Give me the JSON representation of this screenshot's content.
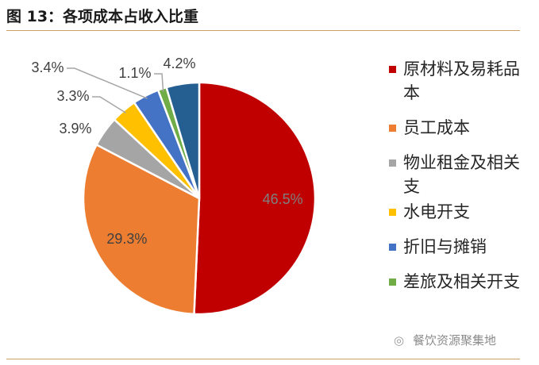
{
  "title": "图 13：各项成本占收入比重",
  "watermark": "餐饮资源聚集地",
  "chart_data": {
    "type": "pie",
    "title": "图 13：各项成本占收入比重",
    "slices": [
      {
        "name": "原材料及易耗品本",
        "value": 46.5,
        "label": "46.5%",
        "color": "#c00000"
      },
      {
        "name": "员工成本",
        "value": 29.3,
        "label": "29.3%",
        "color": "#ed7d31"
      },
      {
        "name": "物业租金及相关支",
        "value": 3.9,
        "label": "3.9%",
        "color": "#a5a5a5"
      },
      {
        "name": "水电开支",
        "value": 3.3,
        "label": "3.3%",
        "color": "#ffc000"
      },
      {
        "name": "折旧与摊销",
        "value": 3.4,
        "label": "3.4%",
        "color": "#4472c4"
      },
      {
        "name": "差旅及相关开支",
        "value": 1.1,
        "label": "1.1%",
        "color": "#70ad47"
      },
      {
        "name": "",
        "value": 4.2,
        "label": "4.2%",
        "color": "#255e91"
      }
    ],
    "legend": {
      "placement": "right",
      "items": [
        {
          "lines": [
            "原材料及易耗品",
            "本"
          ],
          "color": "#c00000"
        },
        {
          "lines": [
            "员工成本"
          ],
          "color": "#ed7d31"
        },
        {
          "lines": [
            "物业租金及相关",
            "支"
          ],
          "color": "#a5a5a5"
        },
        {
          "lines": [
            "水电开支"
          ],
          "color": "#ffc000"
        },
        {
          "lines": [
            "折旧与摊销"
          ],
          "color": "#4472c4"
        },
        {
          "lines": [
            "差旅及相关开支"
          ],
          "color": "#70ad47"
        }
      ]
    }
  }
}
